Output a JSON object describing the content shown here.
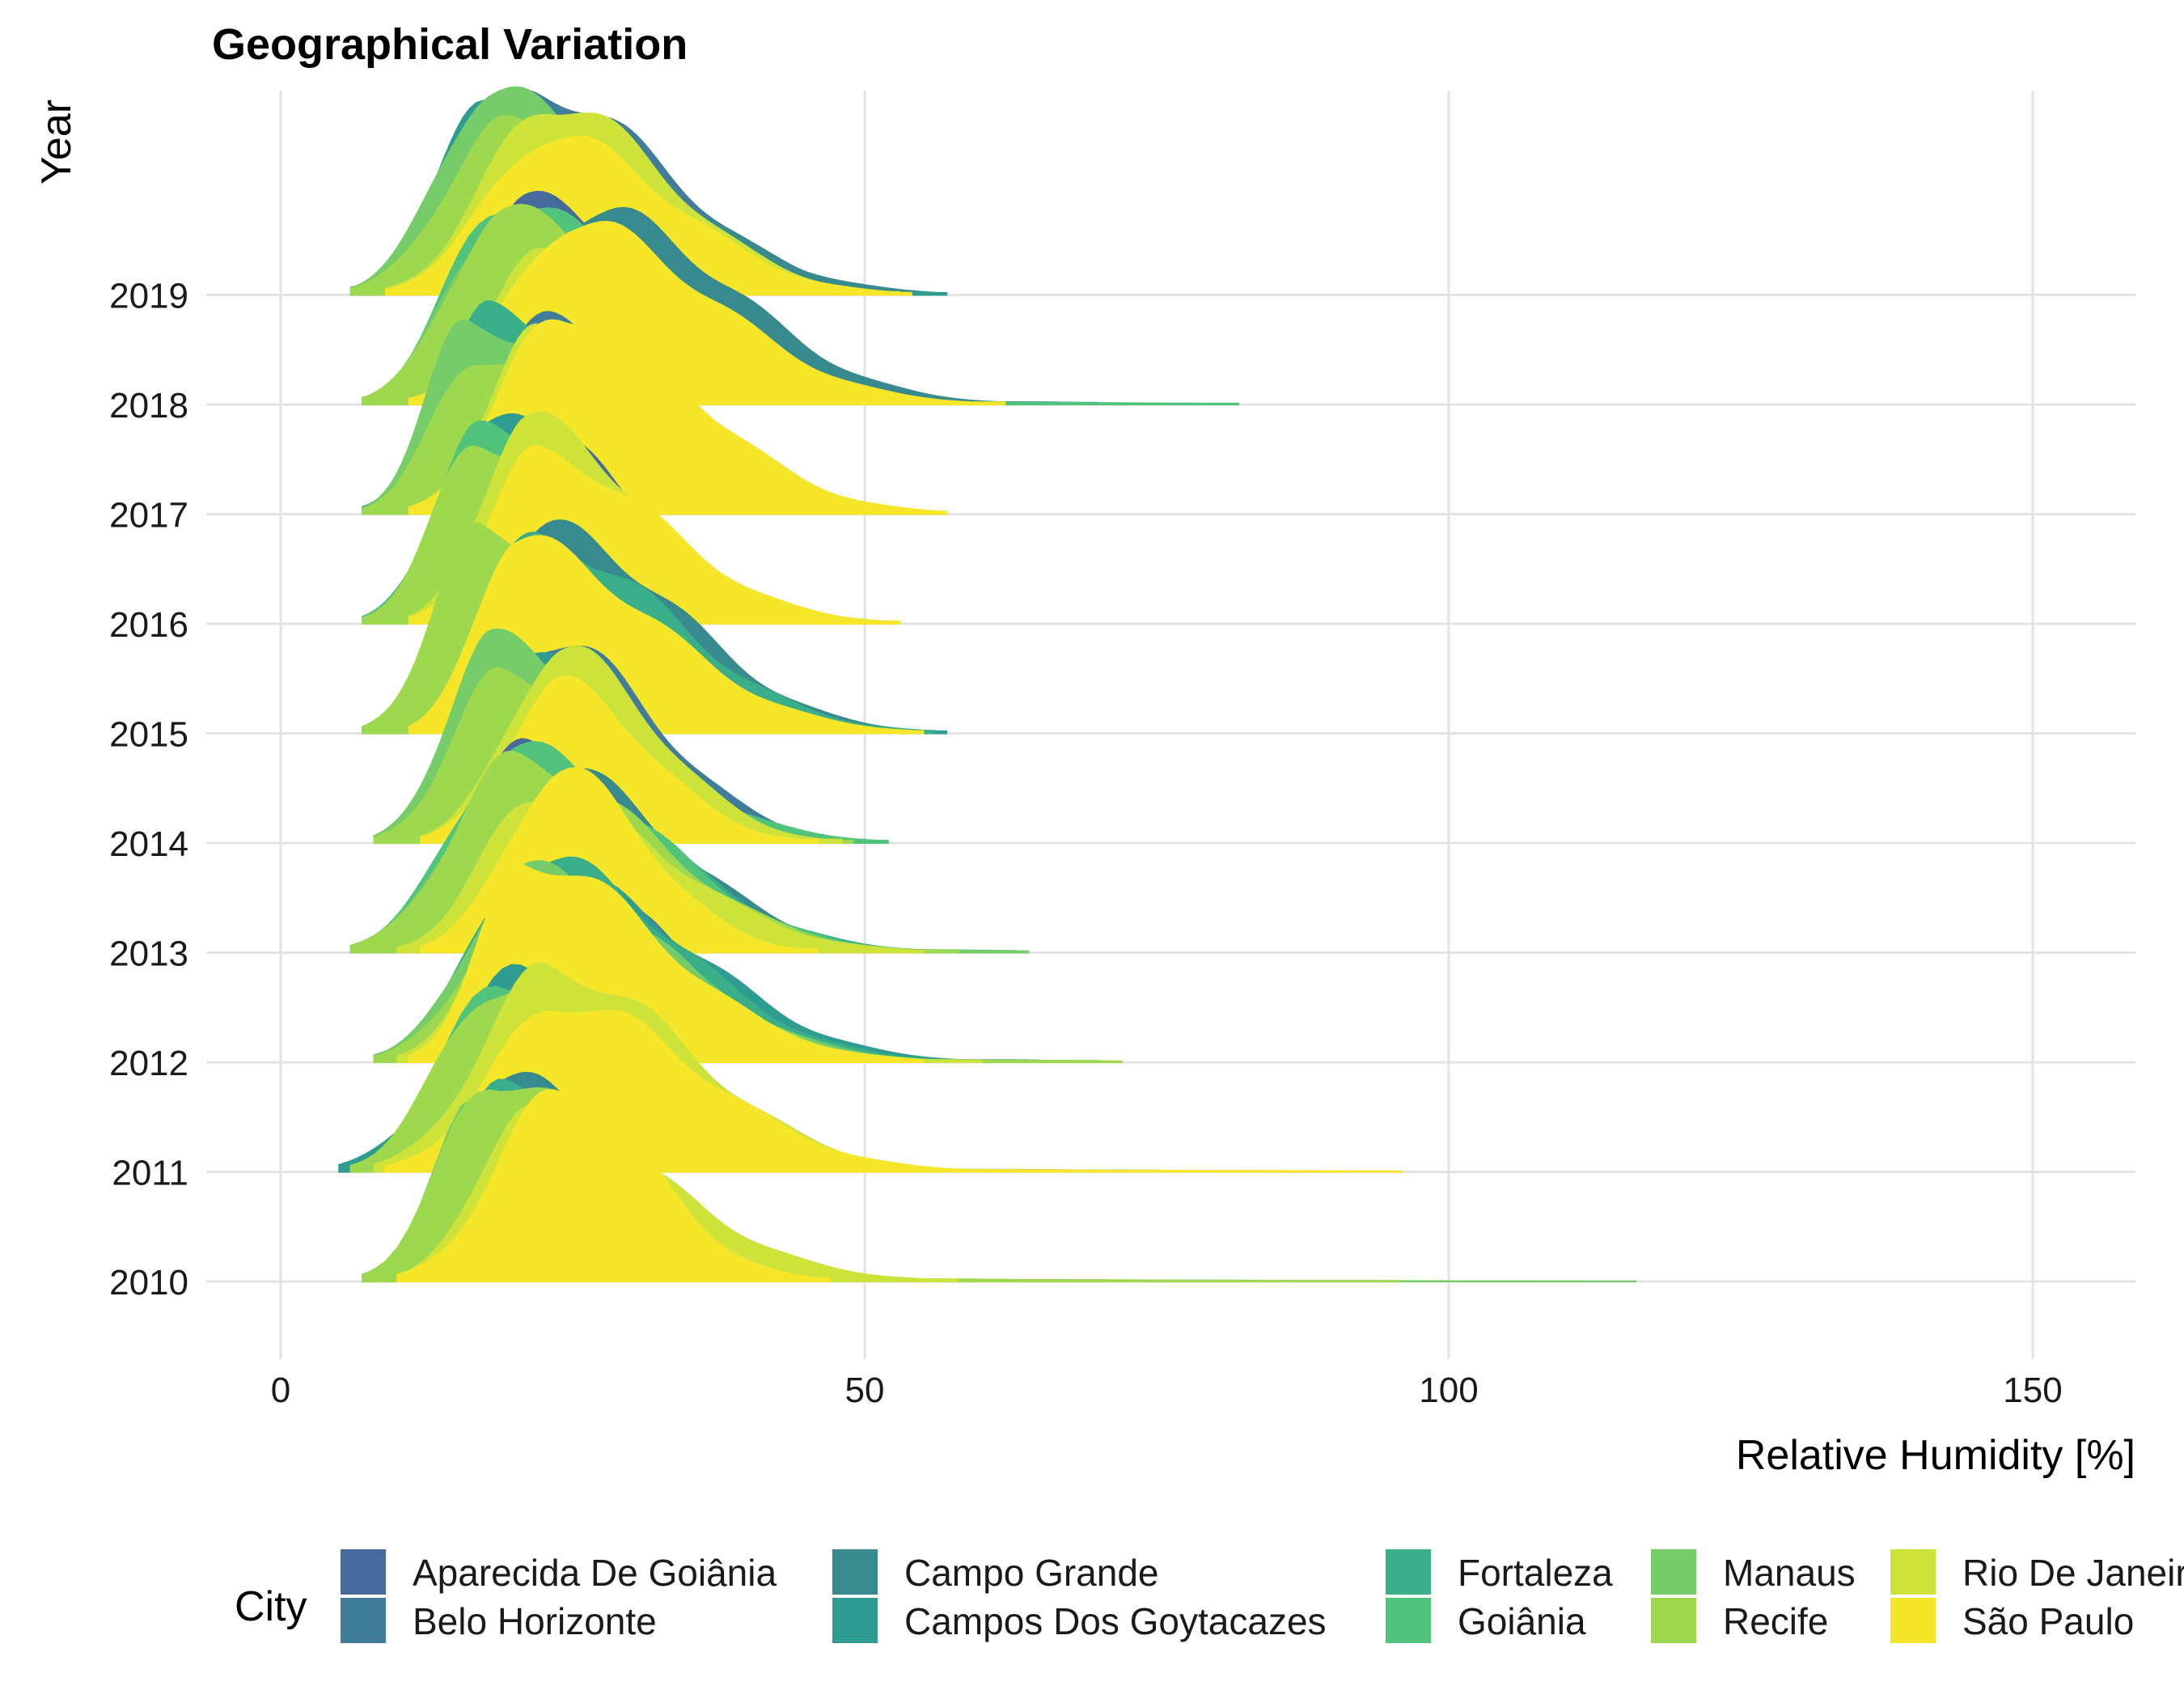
{
  "chart_data": {
    "type": "ridgeline",
    "title": "Geographical Variation",
    "xlabel": "Relative Humidity [%]",
    "ylabel": "Year",
    "xlim": [
      -12,
      159
    ],
    "x_ticks": [
      0,
      50,
      100,
      150
    ],
    "grid": true,
    "legend_position": "bottom",
    "legend_title": "City",
    "categories": [
      "2010",
      "2011",
      "2012",
      "2013",
      "2014",
      "2015",
      "2016",
      "2017",
      "2018",
      "2019"
    ],
    "series": [
      {
        "name": "Aparecida De Goiânia",
        "color": "#466a9b",
        "peaks": [
          {
            "year": "2010",
            "mode": 21,
            "range": [
              8,
              40
            ]
          },
          {
            "year": "2011",
            "mode": 22,
            "range": [
              7,
              38
            ]
          },
          {
            "year": "2012",
            "mode": 21,
            "range": [
              8,
              65
            ]
          },
          {
            "year": "2013",
            "mode": 21,
            "range": [
              6,
              50
            ]
          },
          {
            "year": "2014",
            "mode": 21,
            "range": [
              8,
              48
            ]
          },
          {
            "year": "2015",
            "mode": 22,
            "range": [
              7,
              55
            ]
          },
          {
            "year": "2016",
            "mode": 21,
            "range": [
              7,
              50
            ]
          },
          {
            "year": "2017",
            "mode": 21,
            "range": [
              7,
              55
            ]
          },
          {
            "year": "2018",
            "mode": 21,
            "range": [
              7,
              55
            ]
          },
          {
            "year": "2019",
            "mode": 22,
            "range": [
              6,
              55
            ]
          }
        ]
      },
      {
        "name": "Belo Horizonte",
        "color": "#3f7d9a",
        "peaks": [
          {
            "year": "2010",
            "mode": 20,
            "range": [
              8,
              45
            ]
          },
          {
            "year": "2011",
            "mode": 21,
            "range": [
              6,
              42
            ]
          },
          {
            "year": "2012",
            "mode": 22,
            "range": [
              8,
              62
            ]
          },
          {
            "year": "2013",
            "mode": 21,
            "range": [
              6,
              52
            ]
          },
          {
            "year": "2014",
            "mode": 23,
            "range": [
              8,
              50
            ]
          },
          {
            "year": "2015",
            "mode": 21,
            "range": [
              7,
              55
            ]
          },
          {
            "year": "2016",
            "mode": 19,
            "range": [
              7,
              48
            ]
          },
          {
            "year": "2017",
            "mode": 23,
            "range": [
              7,
              52
            ]
          },
          {
            "year": "2018",
            "mode": 24,
            "range": [
              7,
              50
            ]
          },
          {
            "year": "2019",
            "mode": 22,
            "range": [
              6,
              55
            ]
          }
        ]
      },
      {
        "name": "Campo Grande",
        "color": "#378a8e",
        "peaks": [
          {
            "year": "2010",
            "mode": 19,
            "range": [
              7,
              52
            ]
          },
          {
            "year": "2011",
            "mode": 22,
            "range": [
              6,
              50
            ]
          },
          {
            "year": "2012",
            "mode": 23,
            "range": [
              8,
              60
            ]
          },
          {
            "year": "2013",
            "mode": 22,
            "range": [
              6,
              55
            ]
          },
          {
            "year": "2014",
            "mode": 21,
            "range": [
              8,
              50
            ]
          },
          {
            "year": "2015",
            "mode": 23,
            "range": [
              7,
              56
            ]
          },
          {
            "year": "2016",
            "mode": 19,
            "range": [
              7,
              50
            ]
          },
          {
            "year": "2017",
            "mode": 20,
            "range": [
              7,
              55
            ]
          },
          {
            "year": "2018",
            "mode": 27,
            "range": [
              7,
              70
            ]
          },
          {
            "year": "2019",
            "mode": 22,
            "range": [
              6,
              57
            ]
          }
        ]
      },
      {
        "name": "Campos Dos Goytacazes",
        "color": "#2f9c91",
        "peaks": [
          {
            "year": "2010",
            "mode": 19,
            "range": [
              7,
              80
            ]
          },
          {
            "year": "2011",
            "mode": 21,
            "range": [
              5,
              75
            ]
          },
          {
            "year": "2012",
            "mode": 24,
            "range": [
              8,
              65
            ]
          },
          {
            "year": "2013",
            "mode": 20,
            "range": [
              6,
              60
            ]
          },
          {
            "year": "2014",
            "mode": 20,
            "range": [
              8,
              48
            ]
          },
          {
            "year": "2015",
            "mode": 20,
            "range": [
              7,
              57
            ]
          },
          {
            "year": "2016",
            "mode": 18,
            "range": [
              7,
              50
            ]
          },
          {
            "year": "2017",
            "mode": 18,
            "range": [
              7,
              52
            ]
          },
          {
            "year": "2018",
            "mode": 19,
            "range": [
              7,
              68
            ]
          },
          {
            "year": "2019",
            "mode": 18,
            "range": [
              6,
              57
            ]
          }
        ]
      },
      {
        "name": "Fortaleza",
        "color": "#3aae88",
        "peaks": [
          {
            "year": "2010",
            "mode": 19,
            "range": [
              7,
              62
            ]
          },
          {
            "year": "2011",
            "mode": 21,
            "range": [
              6,
              60
            ]
          },
          {
            "year": "2012",
            "mode": 22,
            "range": [
              8,
              58
            ]
          },
          {
            "year": "2013",
            "mode": 21,
            "range": [
              6,
              56
            ]
          },
          {
            "year": "2014",
            "mode": 21,
            "range": [
              8,
              50
            ]
          },
          {
            "year": "2015",
            "mode": 22,
            "range": [
              7,
              56
            ]
          },
          {
            "year": "2016",
            "mode": 17,
            "range": [
              7,
              48
            ]
          },
          {
            "year": "2017",
            "mode": 18,
            "range": [
              7,
              50
            ]
          },
          {
            "year": "2018",
            "mode": 21,
            "range": [
              7,
              60
            ]
          },
          {
            "year": "2019",
            "mode": 18,
            "range": [
              6,
              52
            ]
          }
        ]
      },
      {
        "name": "Goiânia",
        "color": "#52c37c",
        "peaks": [
          {
            "year": "2010",
            "mode": 18,
            "range": [
              7,
              70
            ]
          },
          {
            "year": "2011",
            "mode": 19,
            "range": [
              6,
              92
            ]
          },
          {
            "year": "2012",
            "mode": 22,
            "range": [
              8,
              70
            ]
          },
          {
            "year": "2013",
            "mode": 20,
            "range": [
              6,
              63
            ]
          },
          {
            "year": "2014",
            "mode": 19,
            "range": [
              8,
              52
            ]
          },
          {
            "year": "2015",
            "mode": 17,
            "range": [
              7,
              55
            ]
          },
          {
            "year": "2016",
            "mode": 17,
            "range": [
              7,
              48
            ]
          },
          {
            "year": "2017",
            "mode": 17,
            "range": [
              7,
              50
            ]
          },
          {
            "year": "2018",
            "mode": 19,
            "range": [
              7,
              82
            ]
          },
          {
            "year": "2019",
            "mode": 18,
            "range": [
              6,
              52
            ]
          }
        ]
      },
      {
        "name": "Manaus",
        "color": "#77cc6a",
        "peaks": [
          {
            "year": "2010",
            "mode": 17,
            "range": [
              7,
              116
            ]
          },
          {
            "year": "2011",
            "mode": 19,
            "range": [
              6,
              90
            ]
          },
          {
            "year": "2012",
            "mode": 21,
            "range": [
              8,
              62
            ]
          },
          {
            "year": "2013",
            "mode": 19,
            "range": [
              6,
              64
            ]
          },
          {
            "year": "2014",
            "mode": 18,
            "range": [
              8,
              48
            ]
          },
          {
            "year": "2015",
            "mode": 17,
            "range": [
              7,
              55
            ]
          },
          {
            "year": "2016",
            "mode": 17,
            "range": [
              7,
              48
            ]
          },
          {
            "year": "2017",
            "mode": 16,
            "range": [
              7,
              50
            ]
          },
          {
            "year": "2018",
            "mode": 18,
            "range": [
              7,
              60
            ]
          },
          {
            "year": "2019",
            "mode": 18,
            "range": [
              6,
              50
            ]
          }
        ]
      },
      {
        "name": "Recife",
        "color": "#9ed84f",
        "peaks": [
          {
            "year": "2010",
            "mode": 18,
            "range": [
              7,
              96
            ]
          },
          {
            "year": "2011",
            "mode": 18,
            "range": [
              6,
              68
            ]
          },
          {
            "year": "2012",
            "mode": 21,
            "range": [
              8,
              72
            ]
          },
          {
            "year": "2013",
            "mode": 20,
            "range": [
              6,
              58
            ]
          },
          {
            "year": "2014",
            "mode": 19,
            "range": [
              8,
              49
            ]
          },
          {
            "year": "2015",
            "mode": 17,
            "range": [
              7,
              52
            ]
          },
          {
            "year": "2016",
            "mode": 17,
            "range": [
              7,
              46
            ]
          },
          {
            "year": "2017",
            "mode": 17,
            "range": [
              7,
              50
            ]
          },
          {
            "year": "2018",
            "mode": 19,
            "range": [
              7,
              60
            ]
          },
          {
            "year": "2019",
            "mode": 19,
            "range": [
              6,
              50
            ]
          }
        ]
      },
      {
        "name": "Rio De Janeiro",
        "color": "#cde33a",
        "peaks": [
          {
            "year": "2010",
            "mode": 21,
            "range": [
              10,
              58
            ]
          },
          {
            "year": "2011",
            "mode": 23,
            "range": [
              8,
              60
            ]
          },
          {
            "year": "2012",
            "mode": 21,
            "range": [
              10,
              60
            ]
          },
          {
            "year": "2013",
            "mode": 22,
            "range": [
              10,
              55
            ]
          },
          {
            "year": "2014",
            "mode": 24,
            "range": [
              12,
              48
            ]
          },
          {
            "year": "2015",
            "mode": 20,
            "range": [
              11,
              52
            ]
          },
          {
            "year": "2016",
            "mode": 21,
            "range": [
              11,
              50
            ]
          },
          {
            "year": "2017",
            "mode": 22,
            "range": [
              11,
              55
            ]
          },
          {
            "year": "2018",
            "mode": 23,
            "range": [
              11,
              60
            ]
          },
          {
            "year": "2019",
            "mode": 23,
            "range": [
              9,
              53
            ]
          }
        ]
      },
      {
        "name": "São Paulo",
        "color": "#f6e62a",
        "peaks": [
          {
            "year": "2010",
            "mode": 24,
            "range": [
              10,
              47
            ]
          },
          {
            "year": "2011",
            "mode": 24,
            "range": [
              9,
              96
            ]
          },
          {
            "year": "2012",
            "mode": 21,
            "range": [
              11,
              55
            ]
          },
          {
            "year": "2013",
            "mode": 24,
            "range": [
              12,
              46
            ]
          },
          {
            "year": "2014",
            "mode": 24,
            "range": [
              12,
              46
            ]
          },
          {
            "year": "2015",
            "mode": 20,
            "range": [
              11,
              55
            ]
          },
          {
            "year": "2016",
            "mode": 22,
            "range": [
              11,
              53
            ]
          },
          {
            "year": "2017",
            "mode": 24,
            "range": [
              11,
              57
            ]
          },
          {
            "year": "2018",
            "mode": 25,
            "range": [
              11,
              62
            ]
          },
          {
            "year": "2019",
            "mode": 23,
            "range": [
              9,
              54
            ]
          }
        ]
      }
    ]
  }
}
